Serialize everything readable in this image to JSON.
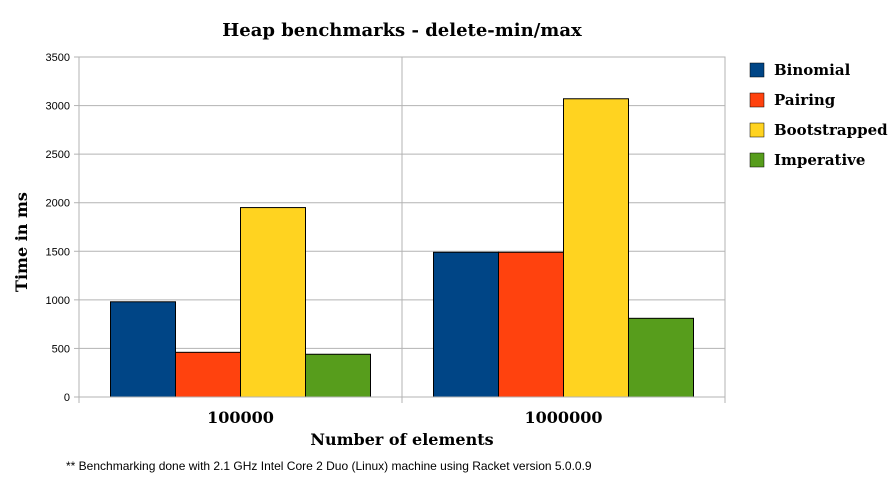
{
  "chart_data": {
    "type": "bar",
    "title": "Heap benchmarks - delete-min/max",
    "xlabel": "Number of elements",
    "ylabel": "Time in ms",
    "categories": [
      "100000",
      "1000000"
    ],
    "series": [
      {
        "name": "Binomial",
        "color": "#004586",
        "values": [
          980,
          1490
        ]
      },
      {
        "name": "Pairing",
        "color": "#ff420e",
        "values": [
          460,
          1490
        ]
      },
      {
        "name": "Bootstrapped",
        "color": "#ffd320",
        "values": [
          1950,
          3070
        ]
      },
      {
        "name": "Imperative",
        "color": "#579d1c",
        "values": [
          440,
          810
        ]
      }
    ],
    "ylim": [
      0,
      3500
    ],
    "yticks": [
      0,
      500,
      1000,
      1500,
      2000,
      2500,
      3000,
      3500
    ],
    "grid": true,
    "legend_position": "right",
    "footnote": "** Benchmarking done with 2.1 GHz Intel Core 2 Duo (Linux) machine using Racket version 5.0.0.9"
  }
}
